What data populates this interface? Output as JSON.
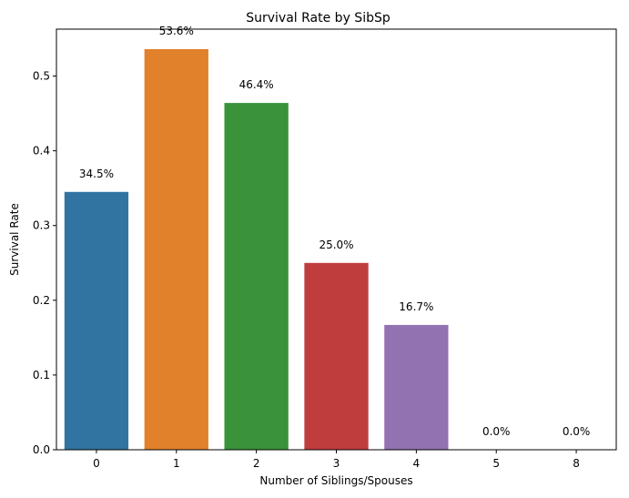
{
  "chart_data": {
    "type": "bar",
    "title": "Survival Rate by SibSp",
    "xlabel": "Number of Siblings/Spouses",
    "ylabel": "Survival Rate",
    "categories": [
      "0",
      "1",
      "2",
      "3",
      "4",
      "5",
      "8"
    ],
    "values": [
      0.345,
      0.536,
      0.464,
      0.25,
      0.167,
      0.0,
      0.0
    ],
    "data_labels": [
      "34.5%",
      "53.6%",
      "46.4%",
      "25.0%",
      "16.7%",
      "0.0%",
      "0.0%"
    ],
    "colors": [
      "#3274a1",
      "#e1812c",
      "#3a923a",
      "#c03d3e",
      "#9372b2",
      "#845b53",
      "#d684bd"
    ],
    "yticks": [
      "0.0",
      "0.1",
      "0.2",
      "0.3",
      "0.4",
      "0.5"
    ],
    "ytick_values": [
      0,
      0.1,
      0.2,
      0.3,
      0.4,
      0.5
    ],
    "ylim": [
      0,
      0.5628
    ],
    "grid": false,
    "legend": "none"
  }
}
